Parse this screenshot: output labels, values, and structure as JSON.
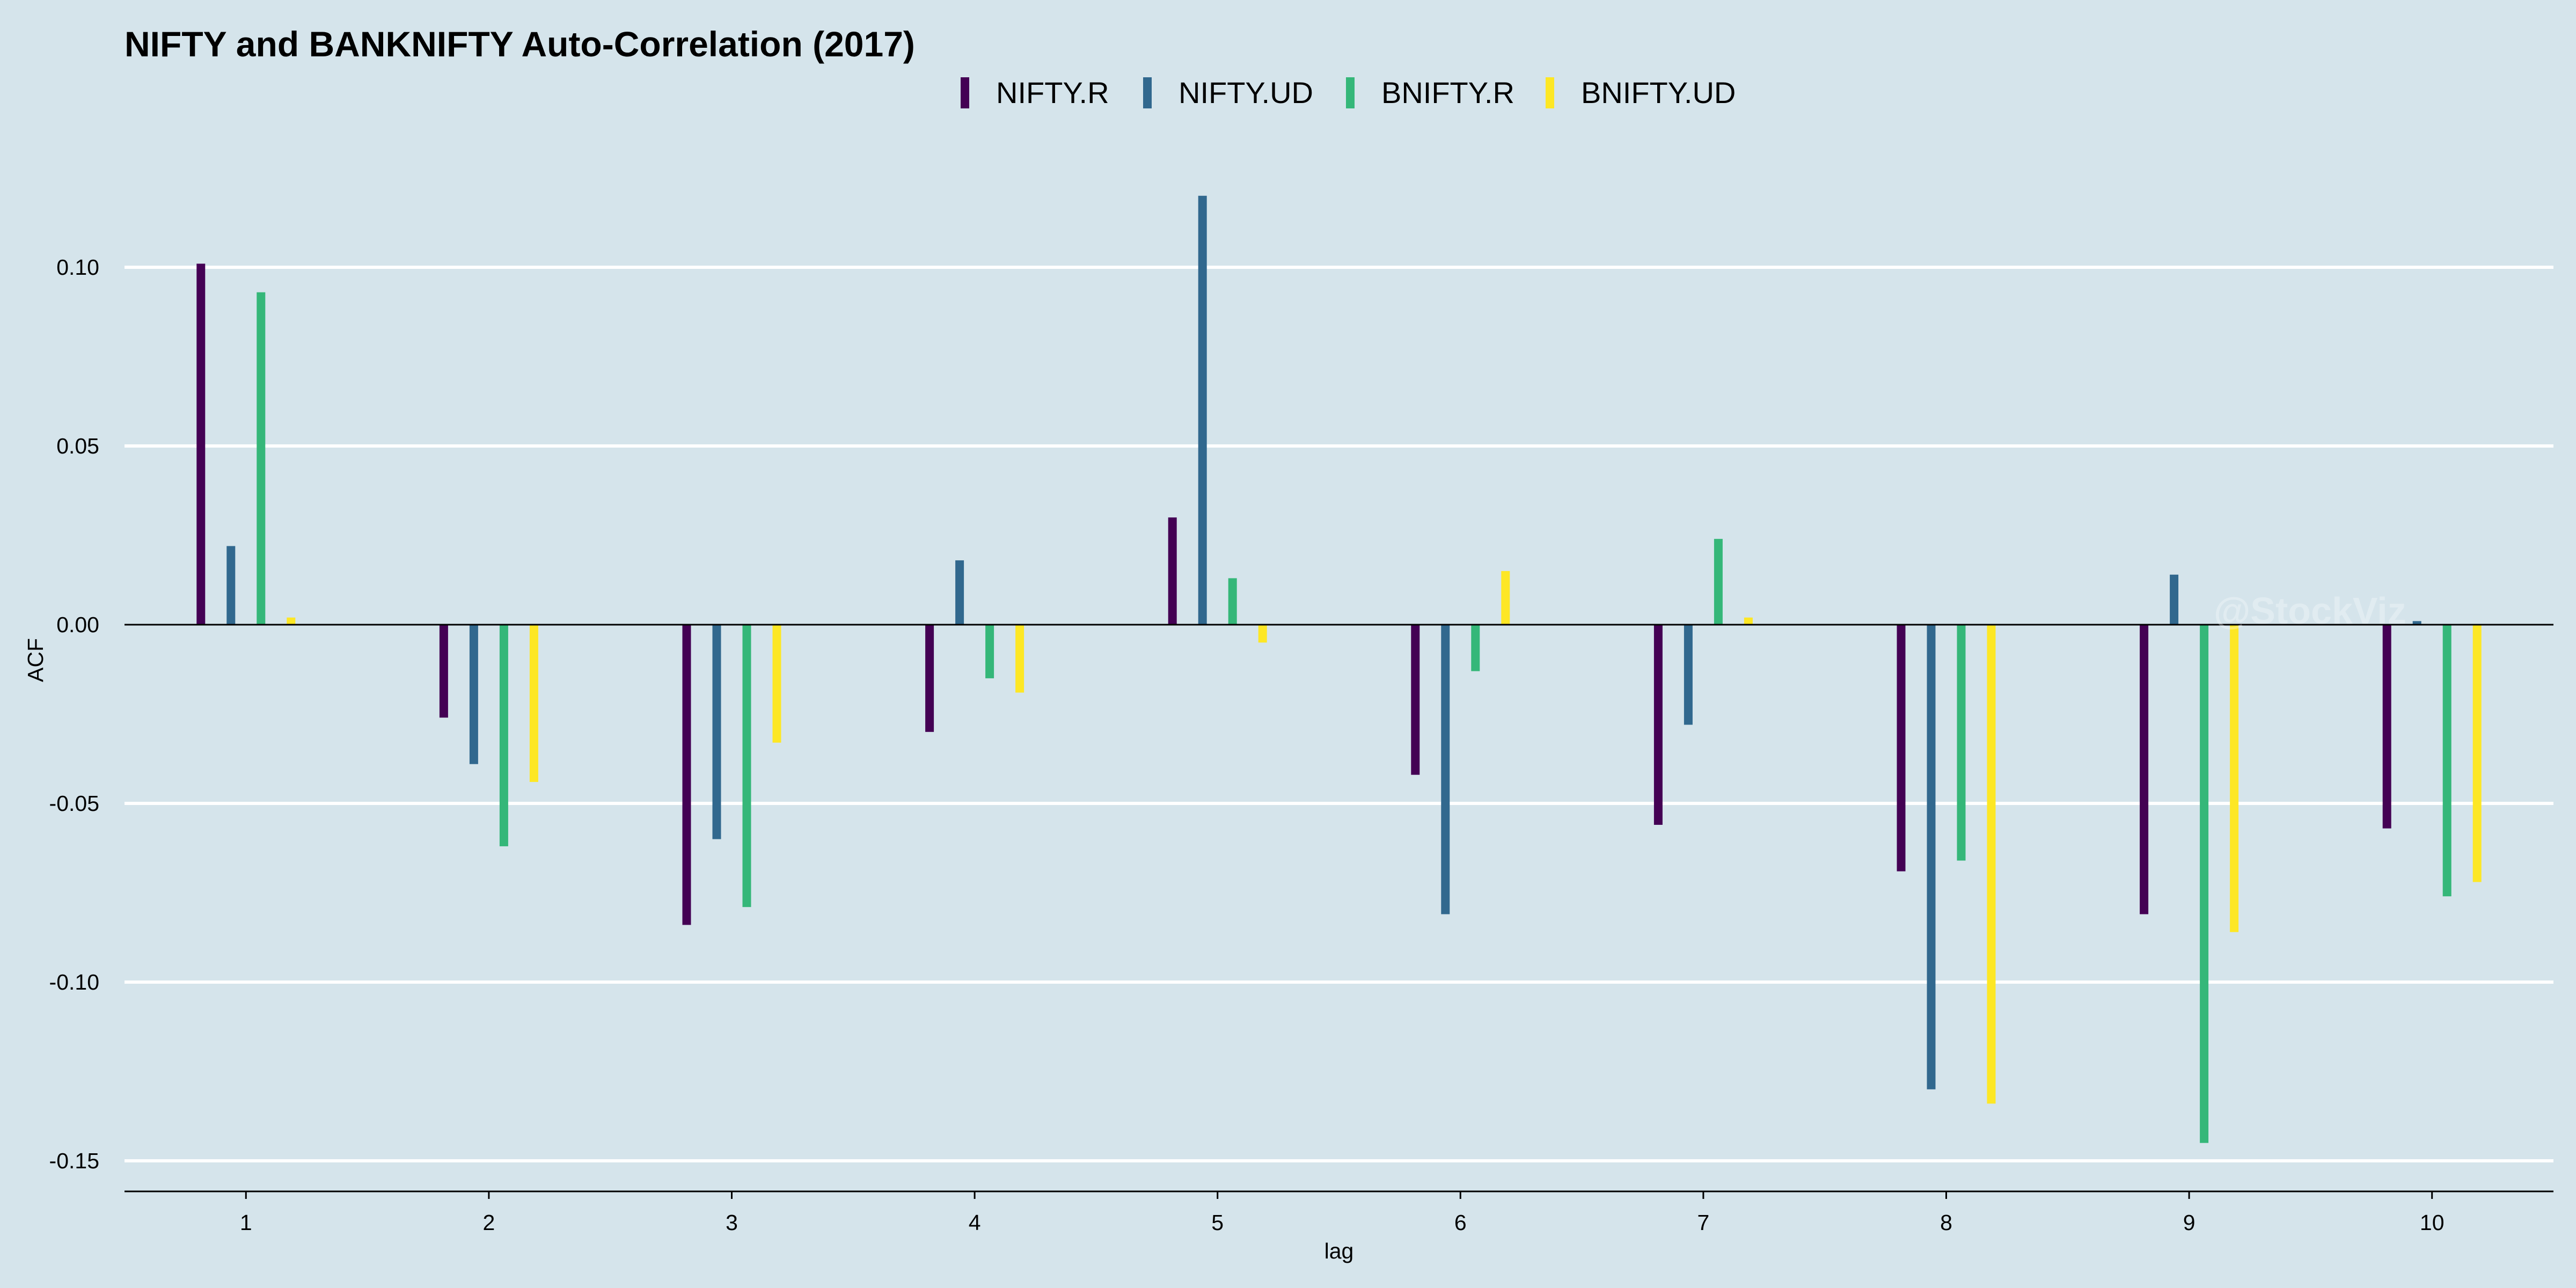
{
  "chart_data": {
    "type": "bar",
    "title": "NIFTY and BANKNIFTY Auto-Correlation (2017)",
    "xlabel": "lag",
    "ylabel": "ACF",
    "categories": [
      "1",
      "2",
      "3",
      "4",
      "5",
      "6",
      "7",
      "8",
      "9",
      "10"
    ],
    "ylim": [
      -0.16,
      0.125
    ],
    "yticks": [
      0.1,
      0.05,
      0.0,
      -0.05,
      -0.1,
      -0.15
    ],
    "ytick_labels": [
      "0.10",
      "0.05",
      "0.00",
      "-0.05",
      "-0.10",
      "-0.15"
    ],
    "grid": true,
    "legend_position": "top",
    "series": [
      {
        "name": "NIFTY.R",
        "color": "#440154",
        "values": [
          0.101,
          -0.026,
          -0.084,
          -0.03,
          0.03,
          -0.042,
          -0.056,
          -0.069,
          -0.081,
          -0.057
        ]
      },
      {
        "name": "NIFTY.UD",
        "color": "#31688e",
        "values": [
          0.022,
          -0.039,
          -0.06,
          0.018,
          0.12,
          -0.081,
          -0.028,
          -0.13,
          0.014,
          0.001
        ]
      },
      {
        "name": "BNIFTY.R",
        "color": "#35b779",
        "values": [
          0.093,
          -0.062,
          -0.079,
          -0.015,
          0.013,
          -0.013,
          0.024,
          -0.066,
          -0.145,
          -0.076
        ]
      },
      {
        "name": "BNIFTY.UD",
        "color": "#fde725",
        "values": [
          0.002,
          -0.044,
          -0.033,
          -0.019,
          -0.005,
          0.015,
          0.002,
          -0.134,
          -0.086,
          -0.072
        ]
      }
    ]
  },
  "watermark": "@StockViz"
}
